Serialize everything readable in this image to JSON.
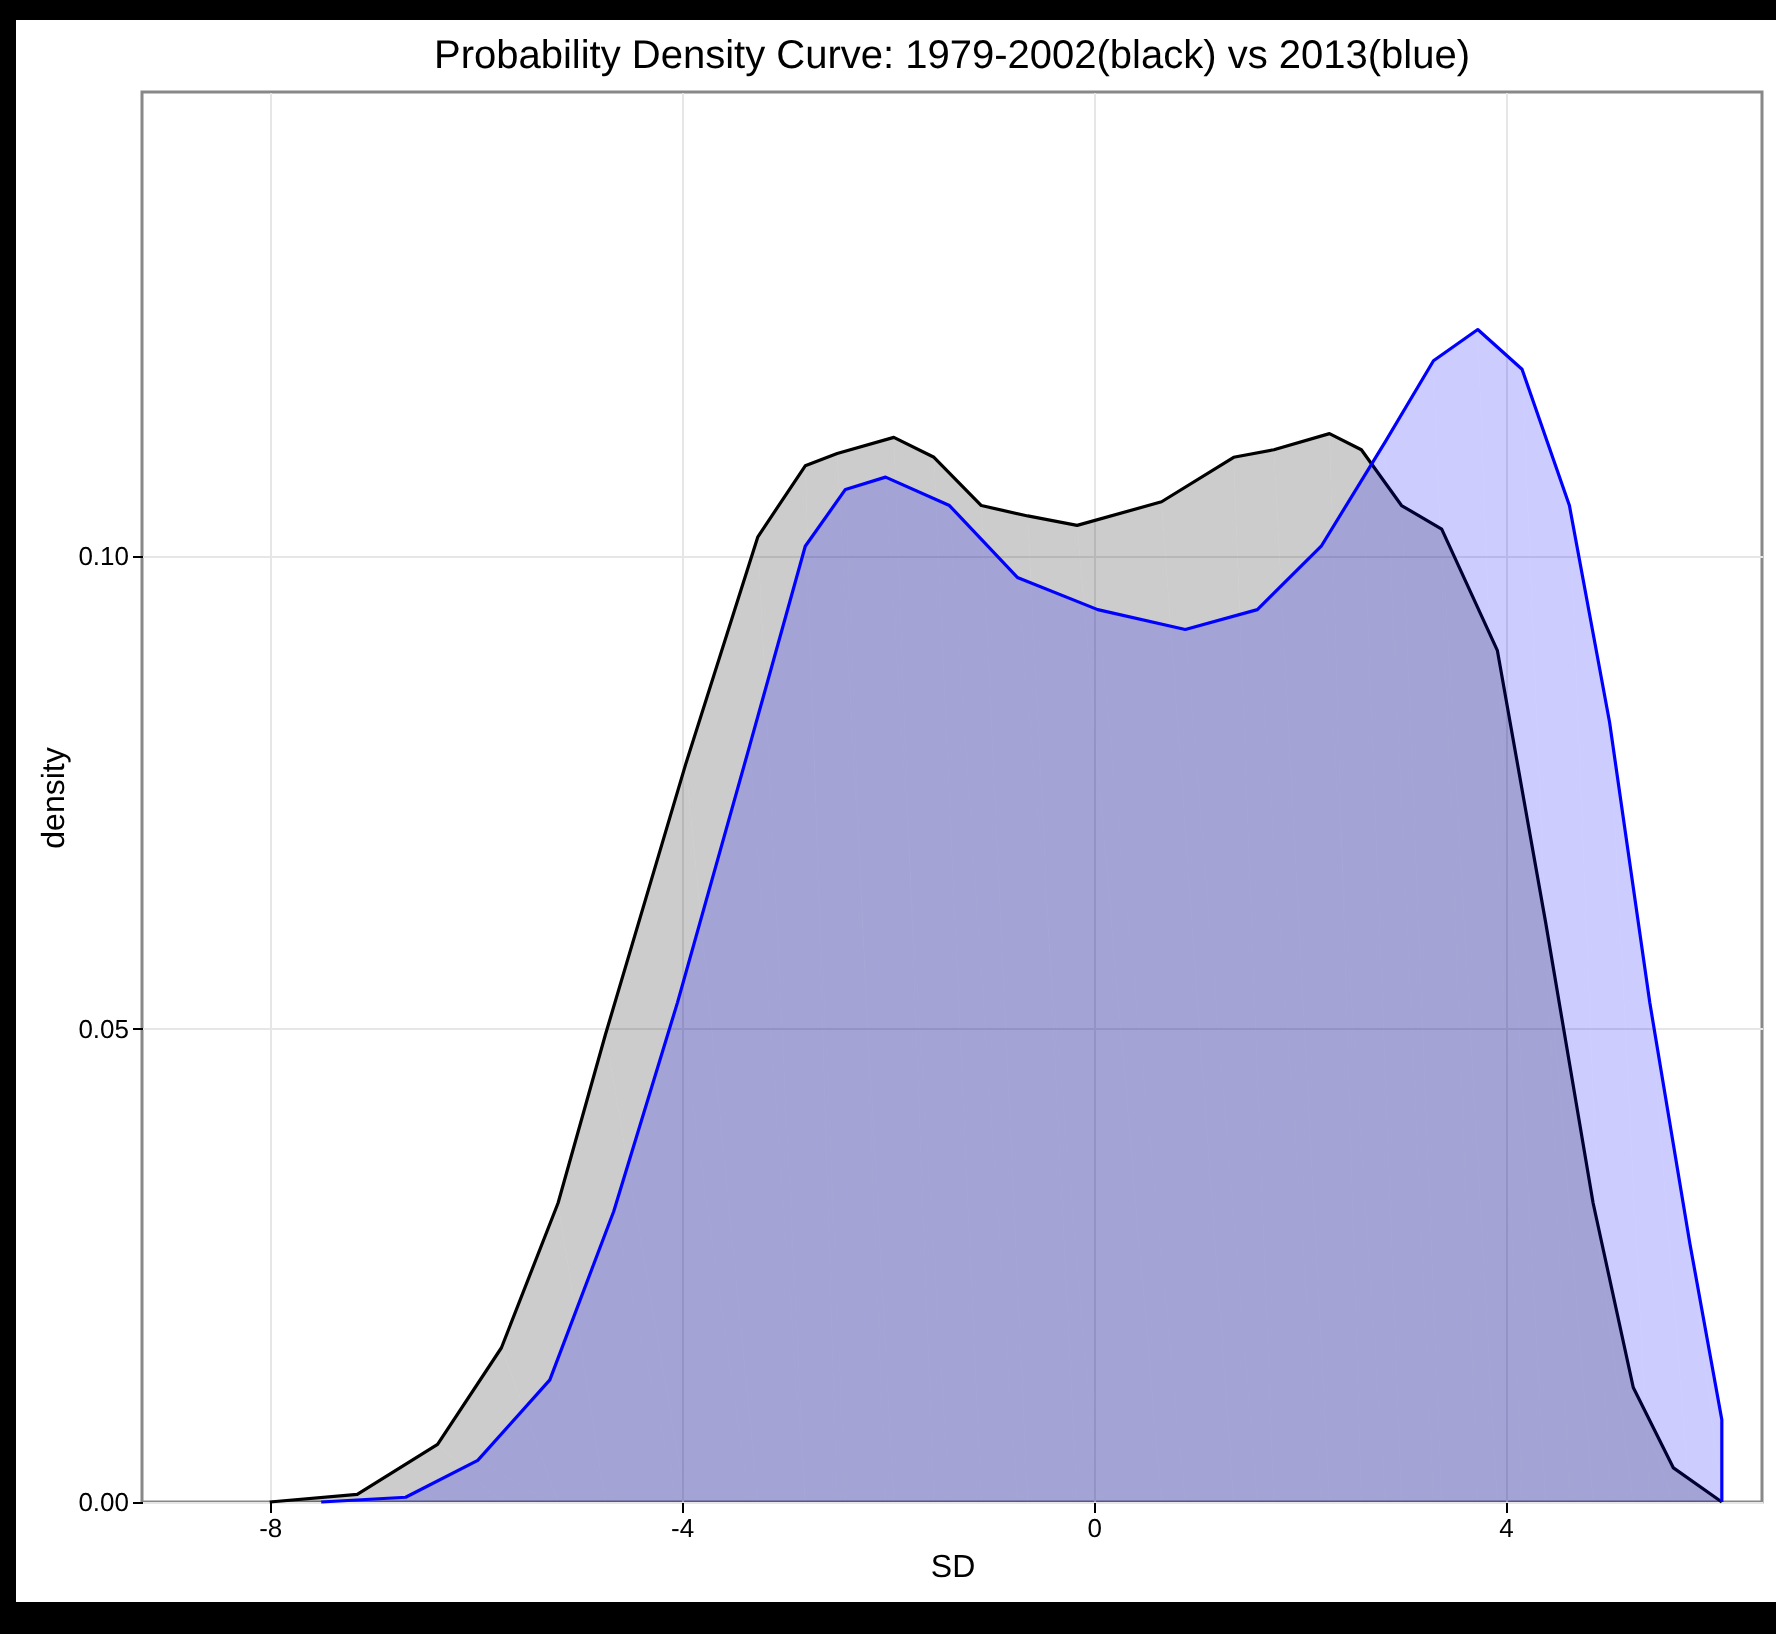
{
  "chart_data": {
    "type": "area",
    "title": "Probability Density Curve: 1979-2002(black) vs 2013(blue)",
    "xlabel": "SD",
    "ylabel": "density",
    "xlim": [
      -9.24,
      6.49
    ],
    "ylim": [
      0,
      0.149
    ],
    "xticks": [
      -8,
      -4,
      0,
      4
    ],
    "yticks": [
      {
        "value": 0,
        "label": "0.00"
      },
      {
        "value": 0.05,
        "label": "0.05"
      },
      {
        "value": 0.1,
        "label": "0.10"
      }
    ],
    "grid": true,
    "series": [
      {
        "color": "#000000",
        "x": [
          -8,
          -7.15,
          -6.37,
          -5.75,
          -5.2,
          -4.74,
          -3.96,
          -3.26,
          -2.8,
          -2.49,
          -1.94,
          -1.55,
          -1.09,
          -0.64,
          -0.16,
          0.66,
          1.36,
          1.75,
          2.29,
          2.6,
          2.99,
          3.38,
          3.92,
          4.39,
          4.85,
          5.24,
          5.63,
          6.1
        ],
        "values": [
          0,
          0.0008,
          0.0061,
          0.0163,
          0.0316,
          0.0494,
          0.078,
          0.102,
          0.1095,
          0.1108,
          0.1125,
          0.1104,
          0.1053,
          0.1042,
          0.1032,
          0.1057,
          0.1104,
          0.1112,
          0.1129,
          0.1112,
          0.1053,
          0.1028,
          0.09,
          0.0612,
          0.0316,
          0.0121,
          0.0036,
          0
        ]
      },
      {
        "color": "#0000ff",
        "x": [
          -7.5,
          -6.68,
          -5.98,
          -5.28,
          -4.66,
          -4.04,
          -3.34,
          -2.8,
          -2.41,
          -2.02,
          -1.4,
          -0.74,
          0.04,
          0.89,
          1.59,
          2.21,
          2.83,
          3.3,
          3.73,
          4.16,
          4.62,
          5.01,
          5.4,
          5.79,
          6.1,
          6.1
        ],
        "values": [
          0,
          0.0005,
          0.0044,
          0.0129,
          0.0307,
          0.0528,
          0.0799,
          0.101,
          0.107,
          0.1083,
          0.1053,
          0.0977,
          0.0943,
          0.0922,
          0.0943,
          0.101,
          0.112,
          0.1206,
          0.1239,
          0.1197,
          0.1053,
          0.0824,
          0.0528,
          0.0273,
          0.0087,
          0
        ]
      }
    ]
  }
}
